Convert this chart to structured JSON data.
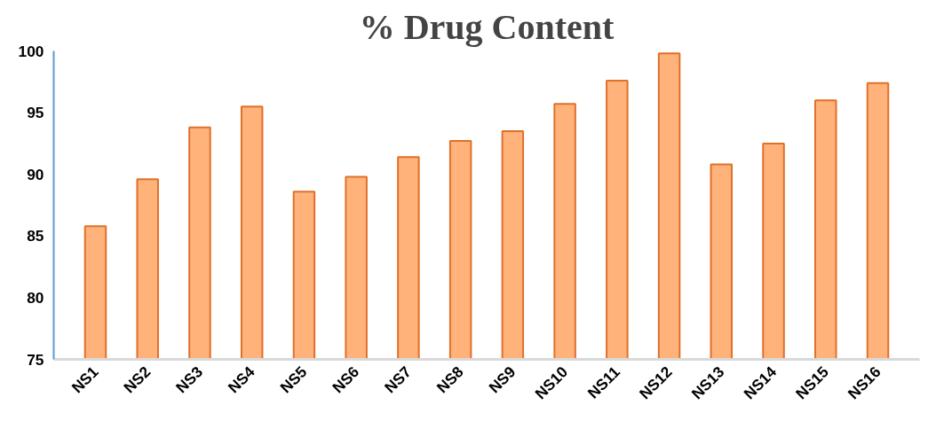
{
  "chart_data": {
    "type": "bar",
    "title": "% Drug Content",
    "categories": [
      "NS1",
      "NS2",
      "NS3",
      "NS4",
      "NS5",
      "NS6",
      "NS7",
      "NS8",
      "NS9",
      "NS10",
      "NS11",
      "NS12",
      "NS13",
      "NS14",
      "NS15",
      "NS16"
    ],
    "values": [
      85.8,
      89.6,
      93.8,
      95.5,
      88.6,
      89.8,
      91.4,
      92.7,
      93.5,
      95.7,
      97.6,
      99.8,
      90.8,
      92.5,
      96.0,
      97.4
    ],
    "color": "#ffb27a",
    "ylim": [
      75,
      100
    ],
    "yticks": [
      75,
      80,
      85,
      90,
      95,
      100
    ],
    "grid": false
  }
}
